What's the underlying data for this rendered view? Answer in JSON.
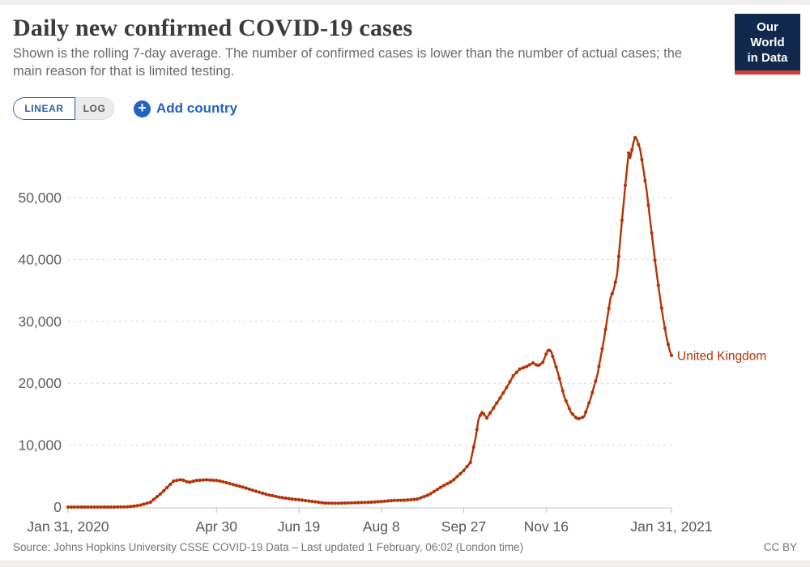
{
  "header": {
    "title": "Daily new confirmed COVID-19 cases",
    "subtitle": "Shown is the rolling 7-day average. The number of confirmed cases is lower than the number of actual cases; the main reason for that is limited testing.",
    "logo": {
      "line1": "Our World",
      "line2": "in Data",
      "bg_color": "#12294e",
      "stripe_color": "#d73c34"
    }
  },
  "controls": {
    "linear_label": "LINEAR",
    "log_label": "LOG",
    "selected_scale": "LINEAR",
    "add_country_label": "Add country",
    "accent_color": "#2263c3"
  },
  "icons": {
    "add": "+"
  },
  "chart_data": {
    "type": "line",
    "title": "Daily new confirmed COVID-19 cases",
    "grid": "dashed-horizontal",
    "y_axis": {
      "min": 0,
      "max": 60000,
      "ticks": [
        {
          "value": 0,
          "label": "0"
        },
        {
          "value": 10000,
          "label": "10,000"
        },
        {
          "value": 20000,
          "label": "20,000"
        },
        {
          "value": 30000,
          "label": "30,000"
        },
        {
          "value": 40000,
          "label": "40,000"
        },
        {
          "value": 50000,
          "label": "50,000"
        }
      ]
    },
    "x_axis": {
      "start": "2020-01-31",
      "end": "2021-01-31",
      "ticks": [
        {
          "date": "2020-01-31",
          "label": "Jan 31, 2020"
        },
        {
          "date": "2020-04-30",
          "label": "Apr 30"
        },
        {
          "date": "2020-06-19",
          "label": "Jun 19"
        },
        {
          "date": "2020-08-08",
          "label": "Aug 8"
        },
        {
          "date": "2020-09-27",
          "label": "Sep 27"
        },
        {
          "date": "2020-11-16",
          "label": "Nov 16"
        },
        {
          "date": "2021-01-31",
          "label": "Jan 31, 2021"
        }
      ]
    },
    "series": [
      {
        "name": "United Kingdom",
        "color": "#b13507",
        "points": [
          [
            "2020-01-31",
            0
          ],
          [
            "2020-02-14",
            2
          ],
          [
            "2020-02-29",
            5
          ],
          [
            "2020-03-07",
            40
          ],
          [
            "2020-03-14",
            250
          ],
          [
            "2020-03-21",
            780
          ],
          [
            "2020-03-28",
            2350
          ],
          [
            "2020-04-04",
            4200
          ],
          [
            "2020-04-09",
            4450
          ],
          [
            "2020-04-13",
            3980
          ],
          [
            "2020-04-18",
            4300
          ],
          [
            "2020-04-24",
            4400
          ],
          [
            "2020-04-30",
            4300
          ],
          [
            "2020-05-03",
            4150
          ],
          [
            "2020-05-10",
            3650
          ],
          [
            "2020-05-17",
            3150
          ],
          [
            "2020-05-24",
            2550
          ],
          [
            "2020-05-31",
            2000
          ],
          [
            "2020-06-07",
            1600
          ],
          [
            "2020-06-14",
            1320
          ],
          [
            "2020-06-21",
            1120
          ],
          [
            "2020-06-28",
            880
          ],
          [
            "2020-07-05",
            640
          ],
          [
            "2020-07-12",
            610
          ],
          [
            "2020-07-19",
            670
          ],
          [
            "2020-07-26",
            730
          ],
          [
            "2020-08-02",
            780
          ],
          [
            "2020-08-09",
            920
          ],
          [
            "2020-08-16",
            1080
          ],
          [
            "2020-08-23",
            1120
          ],
          [
            "2020-08-30",
            1300
          ],
          [
            "2020-09-06",
            2000
          ],
          [
            "2020-09-13",
            3200
          ],
          [
            "2020-09-20",
            4200
          ],
          [
            "2020-09-27",
            5900
          ],
          [
            "2020-10-01",
            7200
          ],
          [
            "2020-10-04",
            10900
          ],
          [
            "2020-10-06",
            14200
          ],
          [
            "2020-10-08",
            15400
          ],
          [
            "2020-10-11",
            14400
          ],
          [
            "2020-10-15",
            16000
          ],
          [
            "2020-10-19",
            17600
          ],
          [
            "2020-10-23",
            19300
          ],
          [
            "2020-10-27",
            21200
          ],
          [
            "2020-10-31",
            22300
          ],
          [
            "2020-11-04",
            22700
          ],
          [
            "2020-11-08",
            23300
          ],
          [
            "2020-11-11",
            22800
          ],
          [
            "2020-11-14",
            23400
          ],
          [
            "2020-11-17",
            25400
          ],
          [
            "2020-11-19",
            25200
          ],
          [
            "2020-11-23",
            21800
          ],
          [
            "2020-11-27",
            17800
          ],
          [
            "2020-12-01",
            15300
          ],
          [
            "2020-12-05",
            14200
          ],
          [
            "2020-12-09",
            14600
          ],
          [
            "2020-12-13",
            17600
          ],
          [
            "2020-12-17",
            21300
          ],
          [
            "2020-12-21",
            27000
          ],
          [
            "2020-12-25",
            33800
          ],
          [
            "2020-12-27",
            35200
          ],
          [
            "2020-12-29",
            37500
          ],
          [
            "2020-12-31",
            43500
          ],
          [
            "2021-01-03",
            52000
          ],
          [
            "2021-01-05",
            57200
          ],
          [
            "2021-01-06",
            56400
          ],
          [
            "2021-01-08",
            59000
          ],
          [
            "2021-01-09",
            59700
          ],
          [
            "2021-01-10",
            59400
          ],
          [
            "2021-01-12",
            57800
          ],
          [
            "2021-01-14",
            54500
          ],
          [
            "2021-01-16",
            51000
          ],
          [
            "2021-01-18",
            46500
          ],
          [
            "2021-01-20",
            42000
          ],
          [
            "2021-01-22",
            37800
          ],
          [
            "2021-01-24",
            33900
          ],
          [
            "2021-01-26",
            30400
          ],
          [
            "2021-01-28",
            27400
          ],
          [
            "2021-01-30",
            25200
          ],
          [
            "2021-01-31",
            24500
          ]
        ]
      }
    ]
  },
  "footer": {
    "source": "Source: Johns Hopkins University CSSE COVID-19 Data – Last updated 1 February, 06:02 (London time)",
    "license": "CC BY"
  }
}
